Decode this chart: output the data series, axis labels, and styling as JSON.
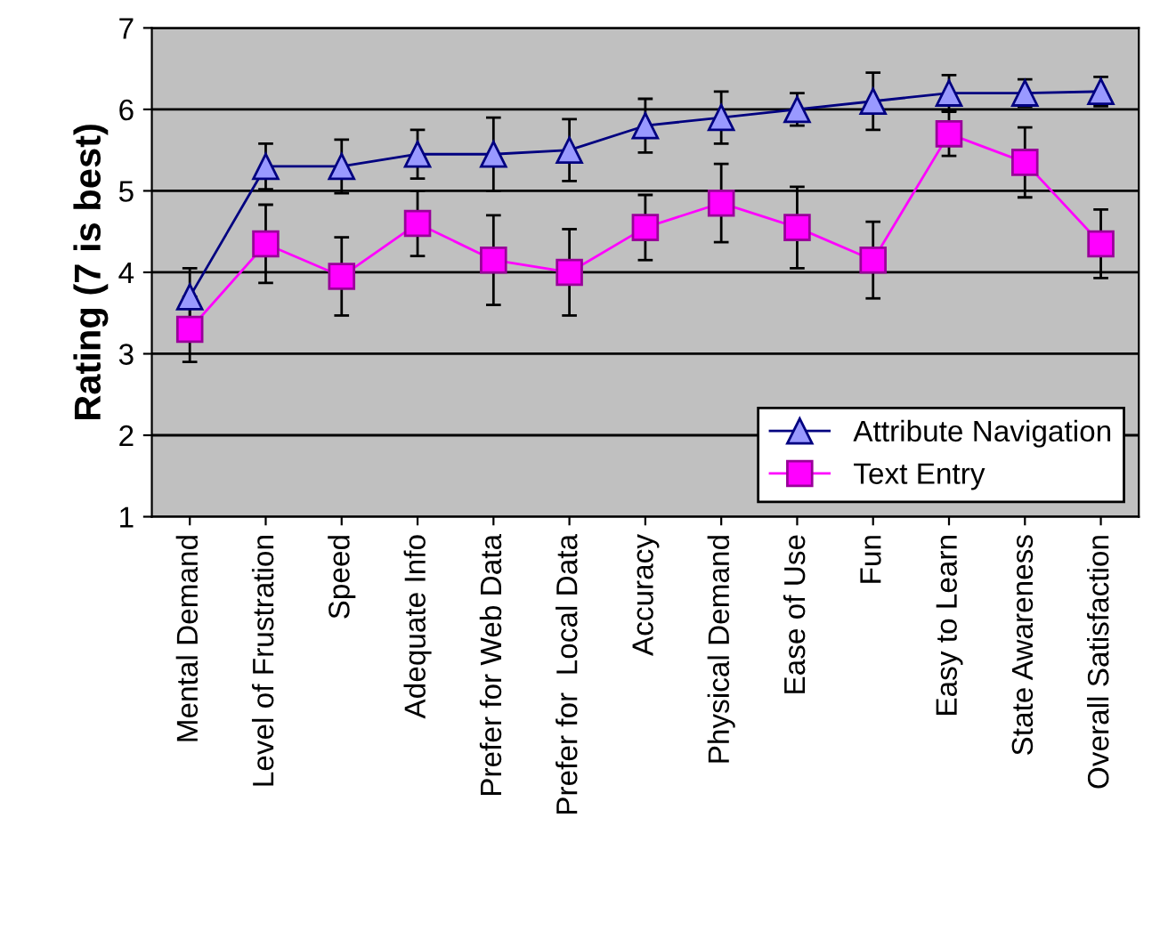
{
  "chart_data": {
    "type": "line",
    "ylabel": "Rating (7 is best)",
    "categories": [
      "Mental Demand",
      "Level of Frustration",
      "Speed",
      "Adequate Info",
      "Prefer for Web Data",
      "Prefer for  Local Data",
      "Accuracy",
      "Physical Demand",
      "Ease of Use",
      "Fun",
      "Easy to Learn",
      "State Awareness",
      "Overall Satisfaction"
    ],
    "series": [
      {
        "name": "Attribute Navigation",
        "color": "#9999ff",
        "marker": "triangle",
        "values": [
          3.7,
          5.3,
          5.3,
          5.45,
          5.45,
          5.5,
          5.8,
          5.9,
          6.0,
          6.1,
          6.2,
          6.2,
          6.22
        ],
        "errors": [
          0.35,
          0.28,
          0.33,
          0.3,
          0.45,
          0.38,
          0.33,
          0.32,
          0.2,
          0.35,
          0.22,
          0.17,
          0.18
        ]
      },
      {
        "name": "Text Entry",
        "color": "#ff00ff",
        "marker": "square",
        "values": [
          3.3,
          4.35,
          3.95,
          4.6,
          4.15,
          4.0,
          4.55,
          4.85,
          4.55,
          4.15,
          5.7,
          5.35,
          4.35
        ],
        "errors": [
          0.4,
          0.48,
          0.48,
          0.4,
          0.55,
          0.53,
          0.4,
          0.48,
          0.5,
          0.47,
          0.27,
          0.43,
          0.42
        ]
      }
    ],
    "ylim": [
      1,
      7
    ],
    "yticks": [
      1,
      2,
      3,
      4,
      5,
      6,
      7
    ],
    "grid": "y",
    "legend": "bottom right"
  }
}
